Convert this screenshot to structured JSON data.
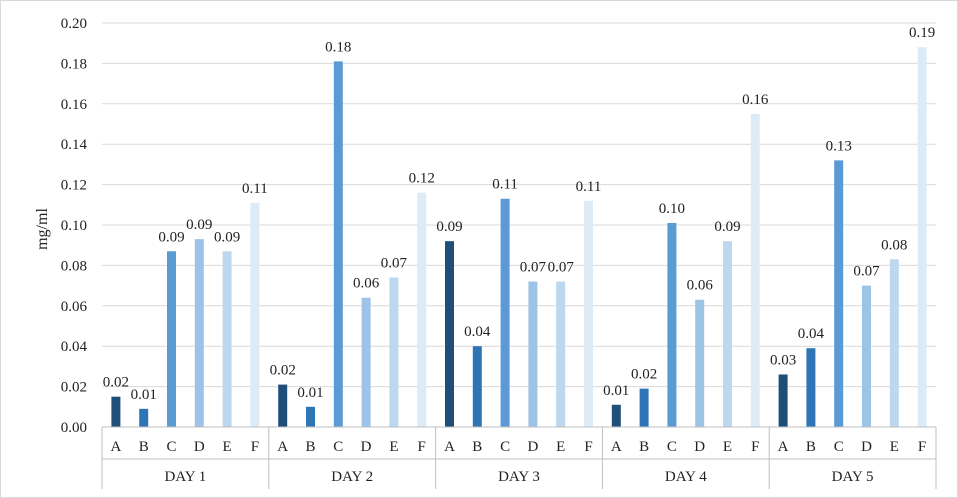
{
  "chart_data": {
    "type": "bar",
    "ylabel": "mg/ml",
    "ylim": [
      0,
      0.2
    ],
    "ytick_step": 0.02,
    "yticks": [
      "0.00",
      "0.02",
      "0.04",
      "0.06",
      "0.08",
      "0.10",
      "0.12",
      "0.14",
      "0.16",
      "0.18",
      "0.20"
    ],
    "grid": true,
    "legend": "none",
    "group_labels": [
      "DAY 1",
      "DAY 2",
      "DAY 3",
      "DAY 4",
      "DAY 5"
    ],
    "categories": [
      "A",
      "B",
      "C",
      "D",
      "E",
      "F"
    ],
    "colors": [
      "#1f4e79",
      "#2e75b6",
      "#5b9bd5",
      "#9dc3e6",
      "#bdd7ee",
      "#ddebf7"
    ],
    "groups": [
      {
        "label": "DAY 1",
        "values": [
          0.015,
          0.009,
          0.087,
          0.093,
          0.087,
          0.111
        ],
        "data_labels": [
          "0.02",
          "0.01",
          "0.09",
          "0.09",
          "0.09",
          "0.11"
        ]
      },
      {
        "label": "DAY 2",
        "values": [
          0.021,
          0.01,
          0.181,
          0.064,
          0.074,
          0.116
        ],
        "data_labels": [
          "0.02",
          "0.01",
          "0.18",
          "0.06",
          "0.07",
          "0.12"
        ]
      },
      {
        "label": "DAY 3",
        "values": [
          0.092,
          0.04,
          0.113,
          0.072,
          0.072,
          0.112
        ],
        "data_labels": [
          "0.09",
          "0.04",
          "0.11",
          "0.07",
          "0.07",
          "0.11"
        ]
      },
      {
        "label": "DAY 4",
        "values": [
          0.011,
          0.019,
          0.101,
          0.063,
          0.092,
          0.155
        ],
        "data_labels": [
          "0.01",
          "0.02",
          "0.10",
          "0.06",
          "0.09",
          "0.16"
        ]
      },
      {
        "label": "DAY 5",
        "values": [
          0.026,
          0.039,
          0.132,
          0.07,
          0.083,
          0.188
        ],
        "data_labels": [
          "0.03",
          "0.04",
          "0.13",
          "0.07",
          "0.08",
          "0.19"
        ]
      }
    ]
  }
}
